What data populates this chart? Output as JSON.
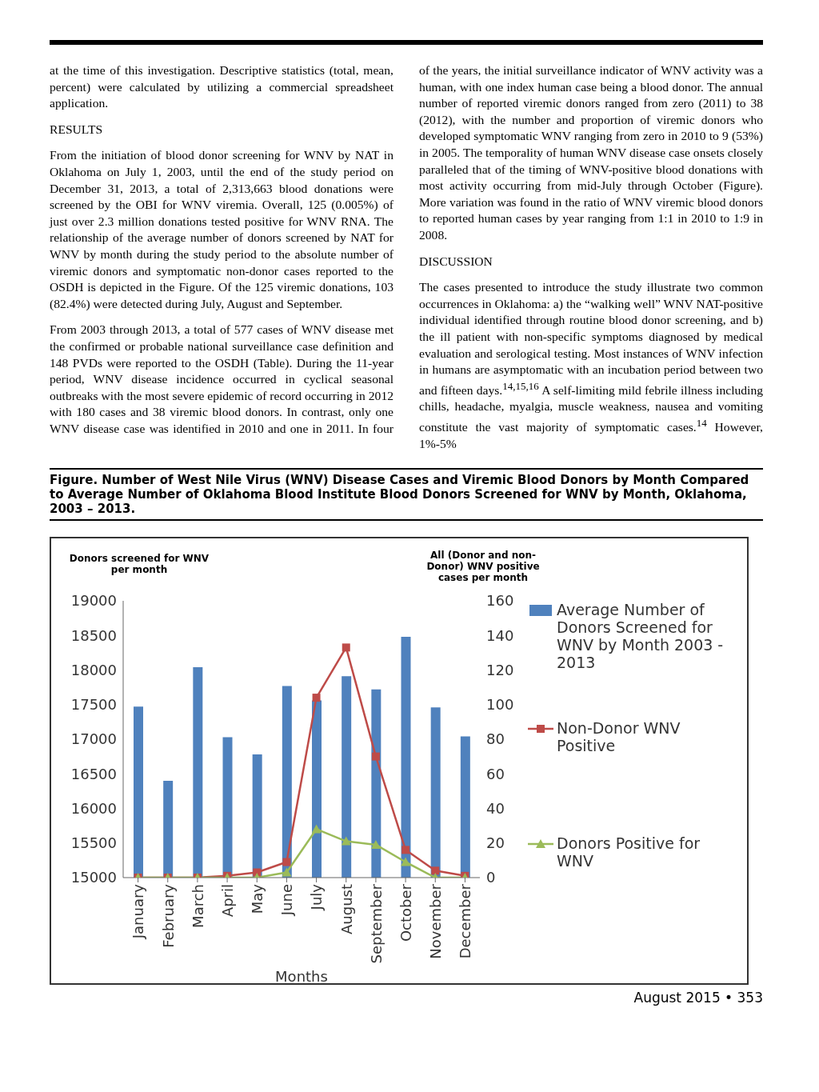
{
  "chart_data": {
    "type": "bar",
    "title": "Figure.  Number of West Nile Virus (WNV) Disease Cases and Viremic Blood Donors by Month Compared to Average Number of Oklahoma Blood Institute Blood Donors Screened for WNV by Month, Oklahoma, 2003 – 2013.",
    "xlabel": "Months",
    "ylabel": "Donors screened for WNV per month",
    "y2label": "All (Donor and non-Donor) WNV positive cases per month",
    "categories": [
      "January",
      "February",
      "March",
      "April",
      "May",
      "June",
      "July",
      "August",
      "September",
      "October",
      "November",
      "December"
    ],
    "series": [
      {
        "name": "Average Number of Donors Screened for WNV by Month 2003 - 2013",
        "axis": "y",
        "color": "#4f81bd",
        "values": [
          17470,
          16400,
          18040,
          17030,
          16780,
          17770,
          17560,
          17910,
          17720,
          18480,
          17460,
          17040
        ]
      },
      {
        "name": "Non-Donor WNV Positive",
        "type": "line",
        "axis": "y2",
        "color": "#be4b48",
        "marker": "square",
        "values": [
          0,
          0,
          0,
          1,
          3,
          9,
          104,
          133,
          70,
          16,
          4,
          1
        ]
      },
      {
        "name": "Donors Positive for WNV",
        "type": "line",
        "axis": "y2",
        "color": "#9bbb59",
        "marker": "triangle",
        "values": [
          0,
          0,
          0,
          0,
          0,
          3,
          28,
          21,
          19,
          9,
          0,
          0
        ]
      }
    ],
    "ylim": [
      15000,
      19000
    ],
    "yticks": [
      15000,
      15500,
      16000,
      16500,
      17000,
      17500,
      18000,
      18500,
      19000
    ],
    "y2lim": [
      0,
      160
    ],
    "y2ticks": [
      0,
      20,
      40,
      60,
      80,
      100,
      120,
      140,
      160
    ],
    "legend": "right",
    "grid": false,
    "annotations": [
      "at the time of this investigation.  Descriptive statistics (total, mean, percent) were calculated by utilizing a commercial spreadsheet application.",
      "RESULTS",
      "From the initiation of blood donor screening for WNV by NAT in Oklahoma on July 1, 2003, until the end of the study period on December 31, 2013, a total of 2,313,663 blood donations were screened by the OBI for WNV viremia. Overall, 125 (0.005%) of just over 2.3 million donations tested positive for WNV RNA.  The relationship of the average number of donors screened by NAT for WNV by month during the study period to the absolute number of viremic donors and symptomatic non-donor cases reported to the OSDH is depicted in the Figure. Of the 125 viremic donations, 103 (82.4%) were detected during July, August and September.",
      "From 2003 through 2013, a total of 577 cases of WNV disease met the confirmed or probable national surveillance case definition and 148 PVDs were reported to the OSDH (Table). During the 11-year period, WNV disease incidence occurred in cyclical seasonal outbreaks with the most severe epidemic of record occurring in 2012 with 180 cases and 38 viremic blood donors.  In contrast, only one WNV disease case was identified in 2010 and one in 2011. In four of the years, the initial surveillance indicator of WNV activity was a human, with one index human case being a blood donor. The annual number of reported viremic donors ranged from zero (2011) to 38 (2012), with the number and proportion of viremic donors who developed symptomatic WNV ranging from zero in 2010 to 9 (53%) in 2005.  The temporality of human WNV disease case onsets closely paralleled that of the timing of WNV-positive blood donations with most activity occurring from mid-July through October (Figure). More variation was found in the ratio of WNV viremic blood donors to reported human cases by year ranging from 1:1 in 2010 to 1:9 in 2008.",
      "DISCUSSION",
      "The cases presented to introduce the study illustrate two common occurrences in Oklahoma: a) the “walking well” WNV NAT-positive individual identified through routine blood donor screening, and b) the ill patient with non-specific symptoms diagnosed by medical evaluation and serological testing. Most instances of WNV infection in humans are asymptomatic with an incubation period between two and fifteen days.$^{14,15,16}$ A self-limiting mild febrile illness including chills, headache, myalgia, muscle weakness, nausea and vomiting constitute the vast majority of symptomatic cases.$^{14}$  However, 1%-5%",
      "August 2015 • 353"
    ]
  }
}
